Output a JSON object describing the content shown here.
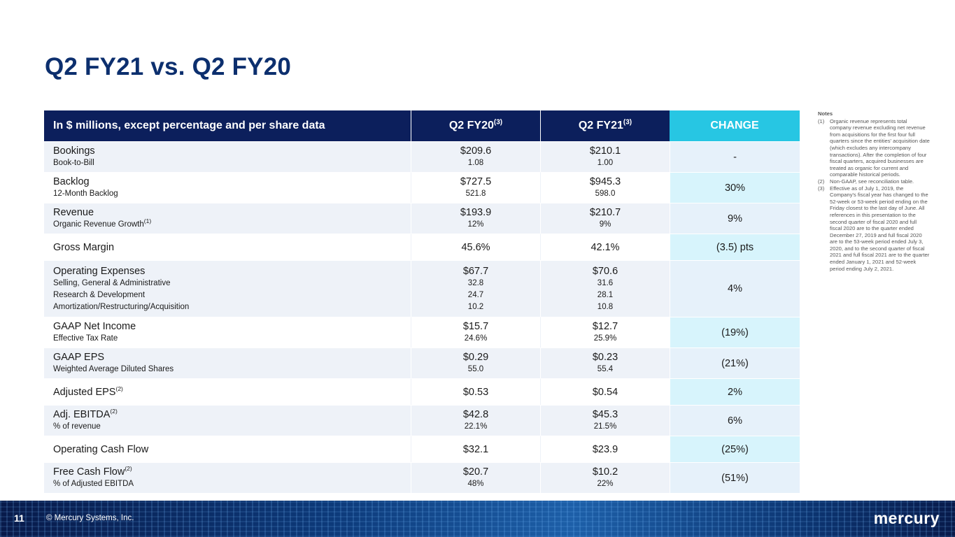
{
  "title": "Q2 FY21 vs. Q2 FY20",
  "header": {
    "label": "In $ millions, except percentage and per share data",
    "col1": "Q2 FY20",
    "col1_sup": "(3)",
    "col2": "Q2 FY21",
    "col2_sup": "(3)",
    "change": "CHANGE"
  },
  "rows": [
    {
      "label": "Bookings",
      "label_sup": "",
      "sub_labels": [
        "Book-to-Bill"
      ],
      "v1": "$209.6",
      "v1_sub": [
        "1.08"
      ],
      "v2": "$210.1",
      "v2_sub": [
        "1.00"
      ],
      "change": "-"
    },
    {
      "label": "Backlog",
      "label_sup": "",
      "sub_labels": [
        "12-Month Backlog"
      ],
      "v1": "$727.5",
      "v1_sub": [
        "521.8"
      ],
      "v2": "$945.3",
      "v2_sub": [
        "598.0"
      ],
      "change": "30%"
    },
    {
      "label": "Revenue",
      "label_sup": "",
      "sub_labels": [
        "Organic Revenue Growth"
      ],
      "sub_label_sup": "(1)",
      "v1": "$193.9",
      "v1_sub": [
        "12%"
      ],
      "v2": "$210.7",
      "v2_sub": [
        "9%"
      ],
      "change": "9%"
    },
    {
      "label": "Gross Margin",
      "label_sup": "",
      "sub_labels": [],
      "v1": "45.6%",
      "v1_sub": [],
      "v2": "42.1%",
      "v2_sub": [],
      "change": "(3.5) pts"
    },
    {
      "label": "Operating Expenses",
      "label_sup": "",
      "sub_labels": [
        "Selling, General & Administrative",
        "Research & Development",
        "Amortization/Restructuring/Acquisition"
      ],
      "v1": "$67.7",
      "v1_sub": [
        "32.8",
        "24.7",
        "10.2"
      ],
      "v2": "$70.6",
      "v2_sub": [
        "31.6",
        "28.1",
        "10.8"
      ],
      "change": "4%"
    },
    {
      "label": "GAAP Net Income",
      "label_sup": "",
      "sub_labels": [
        "Effective Tax Rate"
      ],
      "v1": "$15.7",
      "v1_sub": [
        "24.6%"
      ],
      "v2": "$12.7",
      "v2_sub": [
        "25.9%"
      ],
      "change": "(19%)"
    },
    {
      "label": "GAAP EPS",
      "label_sup": "",
      "sub_labels": [
        "Weighted Average Diluted Shares"
      ],
      "v1": "$0.29",
      "v1_sub": [
        "55.0"
      ],
      "v2": "$0.23",
      "v2_sub": [
        "55.4"
      ],
      "change": "(21%)"
    },
    {
      "label": "Adjusted EPS",
      "label_sup": "(2)",
      "sub_labels": [],
      "v1": "$0.53",
      "v1_sub": [],
      "v2": "$0.54",
      "v2_sub": [],
      "change": "2%"
    },
    {
      "label": "Adj. EBITDA",
      "label_sup": "(2)",
      "sub_labels": [
        "% of revenue"
      ],
      "v1": "$42.8",
      "v1_sub": [
        "22.1%"
      ],
      "v2": "$45.3",
      "v2_sub": [
        "21.5%"
      ],
      "change": "6%"
    },
    {
      "label": "Operating Cash Flow",
      "label_sup": "",
      "sub_labels": [],
      "v1": "$32.1",
      "v1_sub": [],
      "v2": "$23.9",
      "v2_sub": [],
      "change": "(25%)"
    },
    {
      "label": "Free Cash Flow",
      "label_sup": "(2)",
      "sub_labels": [
        "% of Adjusted EBITDA"
      ],
      "v1": "$20.7",
      "v1_sub": [
        "48%"
      ],
      "v2": "$10.2",
      "v2_sub": [
        "22%"
      ],
      "change": "(51%)"
    }
  ],
  "notes": {
    "title": "Notes",
    "items": [
      {
        "num": "(1)",
        "text": "Organic revenue represents total company revenue excluding net revenue from acquisitions for the first four full quarters since the entities' acquisition date (which excludes any intercompany transactions). After the completion of four fiscal quarters, acquired businesses are treated as organic for current and comparable historical periods."
      },
      {
        "num": "(2)",
        "text": "Non-GAAP, see reconciliation table."
      },
      {
        "num": "(3)",
        "text": "Effective as of July 1, 2019, the Company's fiscal year has changed to the 52-week or 53-week period ending on the Friday closest to the last day of June. All references in this presentation to the second quarter of fiscal 2020 and full fiscal 2020 are to the quarter ended December 27, 2019 and full fiscal 2020 are to the 53-week period ended July 3, 2020, and to the second quarter of fiscal 2021 and full fiscal 2021 are to the quarter ended January 1, 2021 and 52-week period ending July 2, 2021."
      }
    ]
  },
  "footer": {
    "page_number": "11",
    "copyright": "© Mercury Systems, Inc.",
    "logo": "mercury"
  }
}
